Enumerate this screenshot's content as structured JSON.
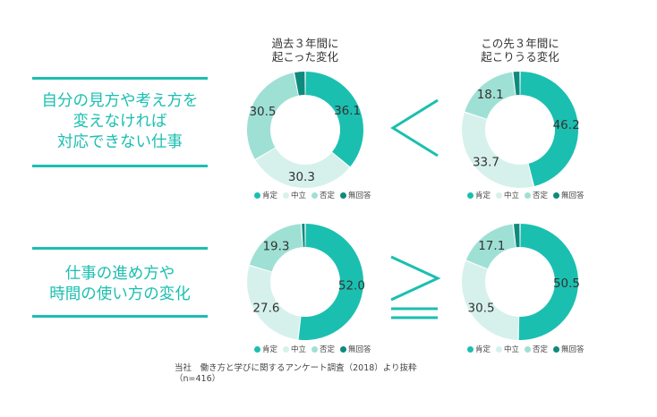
{
  "colors": {
    "accent": "#1bbfb0",
    "positive": "#1bbfb0",
    "neutral": "#d6f1ec",
    "negative": "#9fe0d5",
    "no_answer": "#0e8a7e"
  },
  "columns": [
    "過去３年間に\n起こった変化",
    "この先３年間に\n起こりうる変化"
  ],
  "rows": [
    {
      "label": "自分の見方や考え方を\n変えなければ\n対応できない仕事",
      "comparison": "<"
    },
    {
      "label": "仕事の進め方や\n時間の使い方の変化",
      "comparison": "≧"
    }
  ],
  "legend": [
    "肯定",
    "中立",
    "否定",
    "無回答"
  ],
  "chart_data": [
    {
      "type": "pie",
      "categories": [
        "肯定",
        "中立",
        "否定",
        "無回答"
      ],
      "values": [
        36.1,
        30.3,
        30.5,
        3.1
      ],
      "labels": [
        "36.1",
        "30.3",
        "30.5",
        ""
      ]
    },
    {
      "type": "pie",
      "categories": [
        "肯定",
        "中立",
        "否定",
        "無回答"
      ],
      "values": [
        46.2,
        33.7,
        18.1,
        2.0
      ],
      "labels": [
        "46.2",
        "33.7",
        "18.1",
        ""
      ]
    },
    {
      "type": "pie",
      "categories": [
        "肯定",
        "中立",
        "否定",
        "無回答"
      ],
      "values": [
        52.0,
        27.6,
        19.3,
        1.1
      ],
      "labels": [
        "52.0",
        "27.6",
        "19.3",
        ""
      ]
    },
    {
      "type": "pie",
      "categories": [
        "肯定",
        "中立",
        "否定",
        "無回答"
      ],
      "values": [
        50.5,
        30.5,
        17.1,
        1.9
      ],
      "labels": [
        "50.5",
        "30.5",
        "17.1",
        ""
      ]
    }
  ],
  "footnote": "当社　働き方と学びに関するアンケート調査（2018）より抜粋\n（n=416）"
}
